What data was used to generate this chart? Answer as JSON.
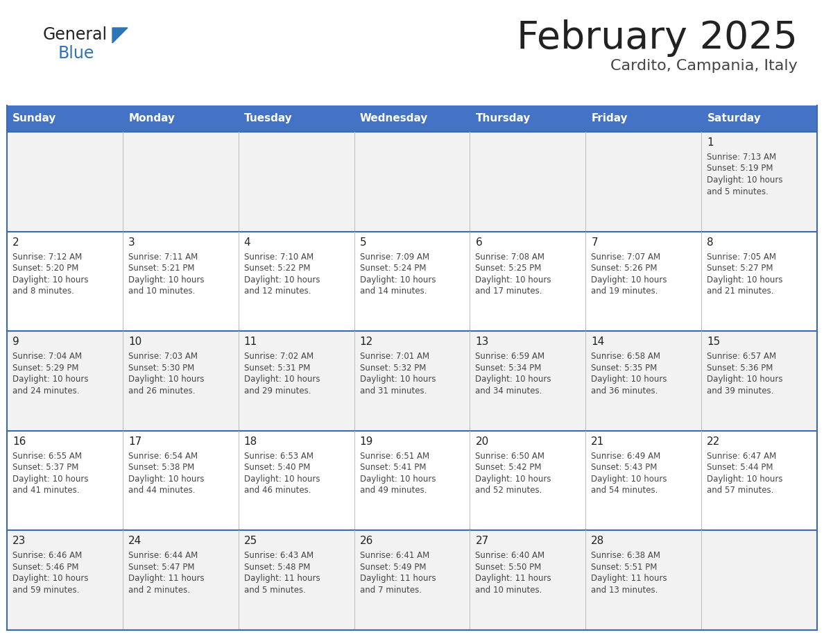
{
  "title": "February 2025",
  "subtitle": "Cardito, Campania, Italy",
  "header_color": "#4472C4",
  "header_text_color": "#FFFFFF",
  "day_names": [
    "Sunday",
    "Monday",
    "Tuesday",
    "Wednesday",
    "Thursday",
    "Friday",
    "Saturday"
  ],
  "bg_color": "#FFFFFF",
  "cell_bg_row0": "#F2F2F2",
  "cell_bg_row1": "#FFFFFF",
  "cell_bg_row2": "#F2F2F2",
  "cell_bg_row3": "#FFFFFF",
  "cell_bg_row4": "#F2F2F2",
  "cell_border_color": "#3A6AB0",
  "day_num_color": "#222222",
  "info_color": "#444444",
  "logo_general_color": "#222222",
  "logo_blue_color": "#2E75B6",
  "logo_triangle_color": "#2E75B6",
  "title_color": "#222222",
  "subtitle_color": "#444444",
  "calendar": [
    [
      null,
      null,
      null,
      null,
      null,
      null,
      {
        "day": 1,
        "sunrise": "7:13 AM",
        "sunset": "5:19 PM",
        "daylight": "10 hours and 5 minutes."
      }
    ],
    [
      {
        "day": 2,
        "sunrise": "7:12 AM",
        "sunset": "5:20 PM",
        "daylight": "10 hours and 8 minutes."
      },
      {
        "day": 3,
        "sunrise": "7:11 AM",
        "sunset": "5:21 PM",
        "daylight": "10 hours and 10 minutes."
      },
      {
        "day": 4,
        "sunrise": "7:10 AM",
        "sunset": "5:22 PM",
        "daylight": "10 hours and 12 minutes."
      },
      {
        "day": 5,
        "sunrise": "7:09 AM",
        "sunset": "5:24 PM",
        "daylight": "10 hours and 14 minutes."
      },
      {
        "day": 6,
        "sunrise": "7:08 AM",
        "sunset": "5:25 PM",
        "daylight": "10 hours and 17 minutes."
      },
      {
        "day": 7,
        "sunrise": "7:07 AM",
        "sunset": "5:26 PM",
        "daylight": "10 hours and 19 minutes."
      },
      {
        "day": 8,
        "sunrise": "7:05 AM",
        "sunset": "5:27 PM",
        "daylight": "10 hours and 21 minutes."
      }
    ],
    [
      {
        "day": 9,
        "sunrise": "7:04 AM",
        "sunset": "5:29 PM",
        "daylight": "10 hours and 24 minutes."
      },
      {
        "day": 10,
        "sunrise": "7:03 AM",
        "sunset": "5:30 PM",
        "daylight": "10 hours and 26 minutes."
      },
      {
        "day": 11,
        "sunrise": "7:02 AM",
        "sunset": "5:31 PM",
        "daylight": "10 hours and 29 minutes."
      },
      {
        "day": 12,
        "sunrise": "7:01 AM",
        "sunset": "5:32 PM",
        "daylight": "10 hours and 31 minutes."
      },
      {
        "day": 13,
        "sunrise": "6:59 AM",
        "sunset": "5:34 PM",
        "daylight": "10 hours and 34 minutes."
      },
      {
        "day": 14,
        "sunrise": "6:58 AM",
        "sunset": "5:35 PM",
        "daylight": "10 hours and 36 minutes."
      },
      {
        "day": 15,
        "sunrise": "6:57 AM",
        "sunset": "5:36 PM",
        "daylight": "10 hours and 39 minutes."
      }
    ],
    [
      {
        "day": 16,
        "sunrise": "6:55 AM",
        "sunset": "5:37 PM",
        "daylight": "10 hours and 41 minutes."
      },
      {
        "day": 17,
        "sunrise": "6:54 AM",
        "sunset": "5:38 PM",
        "daylight": "10 hours and 44 minutes."
      },
      {
        "day": 18,
        "sunrise": "6:53 AM",
        "sunset": "5:40 PM",
        "daylight": "10 hours and 46 minutes."
      },
      {
        "day": 19,
        "sunrise": "6:51 AM",
        "sunset": "5:41 PM",
        "daylight": "10 hours and 49 minutes."
      },
      {
        "day": 20,
        "sunrise": "6:50 AM",
        "sunset": "5:42 PM",
        "daylight": "10 hours and 52 minutes."
      },
      {
        "day": 21,
        "sunrise": "6:49 AM",
        "sunset": "5:43 PM",
        "daylight": "10 hours and 54 minutes."
      },
      {
        "day": 22,
        "sunrise": "6:47 AM",
        "sunset": "5:44 PM",
        "daylight": "10 hours and 57 minutes."
      }
    ],
    [
      {
        "day": 23,
        "sunrise": "6:46 AM",
        "sunset": "5:46 PM",
        "daylight": "10 hours and 59 minutes."
      },
      {
        "day": 24,
        "sunrise": "6:44 AM",
        "sunset": "5:47 PM",
        "daylight": "11 hours and 2 minutes."
      },
      {
        "day": 25,
        "sunrise": "6:43 AM",
        "sunset": "5:48 PM",
        "daylight": "11 hours and 5 minutes."
      },
      {
        "day": 26,
        "sunrise": "6:41 AM",
        "sunset": "5:49 PM",
        "daylight": "11 hours and 7 minutes."
      },
      {
        "day": 27,
        "sunrise": "6:40 AM",
        "sunset": "5:50 PM",
        "daylight": "11 hours and 10 minutes."
      },
      {
        "day": 28,
        "sunrise": "6:38 AM",
        "sunset": "5:51 PM",
        "daylight": "11 hours and 13 minutes."
      },
      null
    ]
  ]
}
